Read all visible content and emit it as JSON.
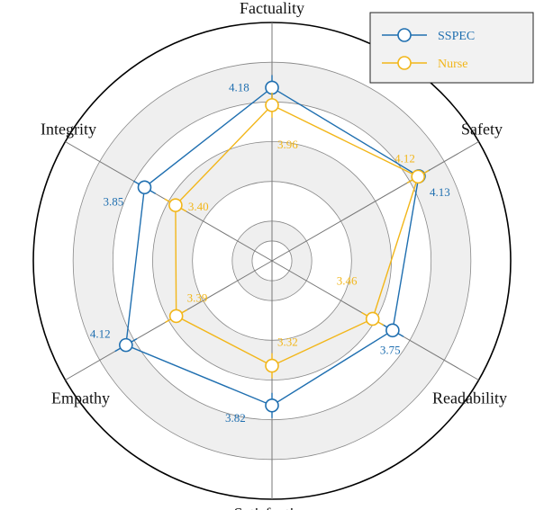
{
  "chart_data": {
    "type": "radar",
    "axes": [
      "Factuality",
      "Safety",
      "Readability",
      "Satisfaction",
      "Empathy",
      "Integrity"
    ],
    "series": [
      {
        "name": "SSPEC",
        "values": [
          4.18,
          4.13,
          3.75,
          3.82,
          4.12,
          3.85
        ],
        "color": "#1f6fb0"
      },
      {
        "name": "Nurse",
        "values": [
          3.96,
          4.12,
          3.46,
          3.32,
          3.39,
          3.4
        ],
        "color": "#f2b619"
      }
    ],
    "value_labels": {
      "SSPEC": [
        "4.18",
        "4.13",
        "3.75",
        "3.82",
        "4.12",
        "3.85"
      ],
      "Nurse": [
        "3.96",
        "4.12",
        "3.46",
        "3.32",
        "3.39",
        "3.40"
      ]
    },
    "rlim": [
      2,
      5
    ],
    "grid": true,
    "legend_position": "top-right",
    "colors": {
      "band_fill": "#efefef",
      "grid": "#888888",
      "outer_ring": "#000000",
      "spoke": "#777777"
    }
  }
}
